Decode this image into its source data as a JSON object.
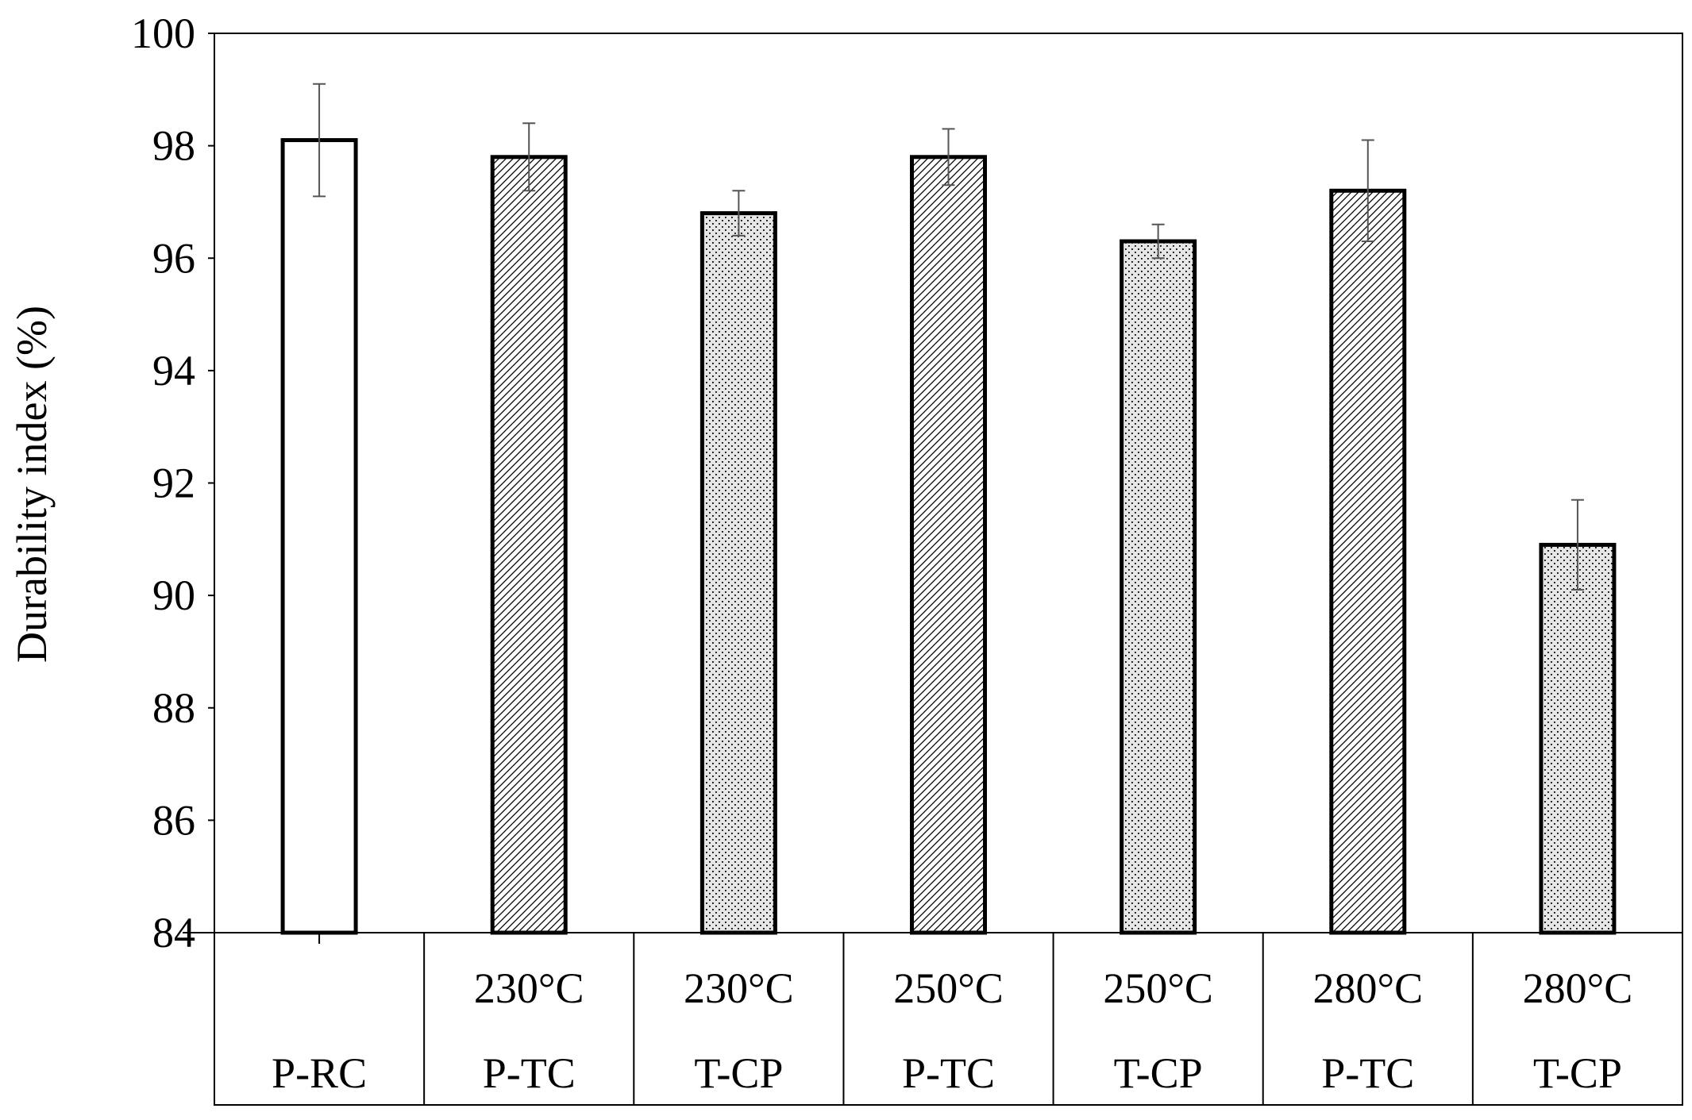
{
  "chart_data": {
    "type": "bar",
    "title": "",
    "ylabel": "Durability index (%)",
    "xlabel": "",
    "ylim": [
      84,
      100
    ],
    "yticks": [
      84,
      86,
      88,
      90,
      92,
      94,
      96,
      98,
      100
    ],
    "grid": false,
    "categories": [
      {
        "top": "",
        "bottom": "P-RC"
      },
      {
        "top": "230°C",
        "bottom": "P-TC"
      },
      {
        "top": "230°C",
        "bottom": "T-CP"
      },
      {
        "top": "250°C",
        "bottom": "P-TC"
      },
      {
        "top": "250°C",
        "bottom": "T-CP"
      },
      {
        "top": "280°C",
        "bottom": "P-TC"
      },
      {
        "top": "280°C",
        "bottom": "T-CP"
      }
    ],
    "values": [
      98.1,
      97.8,
      96.8,
      97.8,
      96.3,
      97.2,
      90.9
    ],
    "errors": [
      1.0,
      0.6,
      0.4,
      0.5,
      0.3,
      0.9,
      0.8
    ],
    "patterns": [
      "none",
      "hatch",
      "dots",
      "hatch",
      "dots",
      "hatch",
      "dots"
    ],
    "colors": {
      "bar_stroke": "#000000",
      "dots_fill": "#e6e6e6",
      "hatch_fill": "#ffffff"
    }
  }
}
